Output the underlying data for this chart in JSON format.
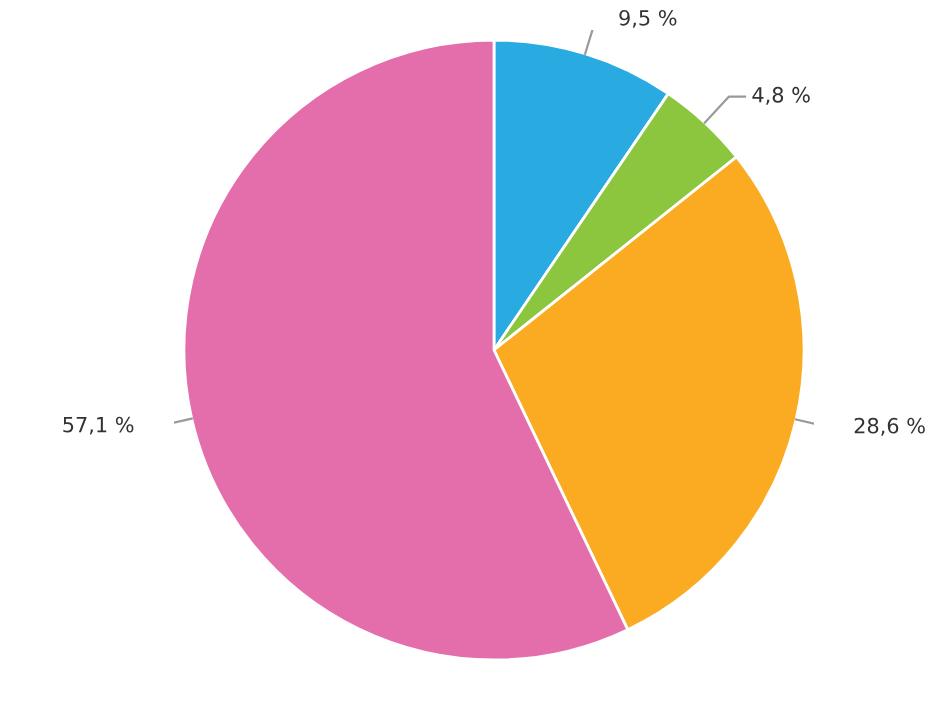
{
  "chart_data": {
    "type": "pie",
    "categories": [
      null,
      null,
      null,
      null
    ],
    "values": [
      9.5,
      4.8,
      28.6,
      57.1
    ],
    "colors": [
      "#29abe2",
      "#8cc63f",
      "#fbab22",
      "#e46eac"
    ],
    "value_labels": [
      "9,5 %",
      "4,8 %",
      "28,6 %",
      "57,1 %"
    ]
  }
}
